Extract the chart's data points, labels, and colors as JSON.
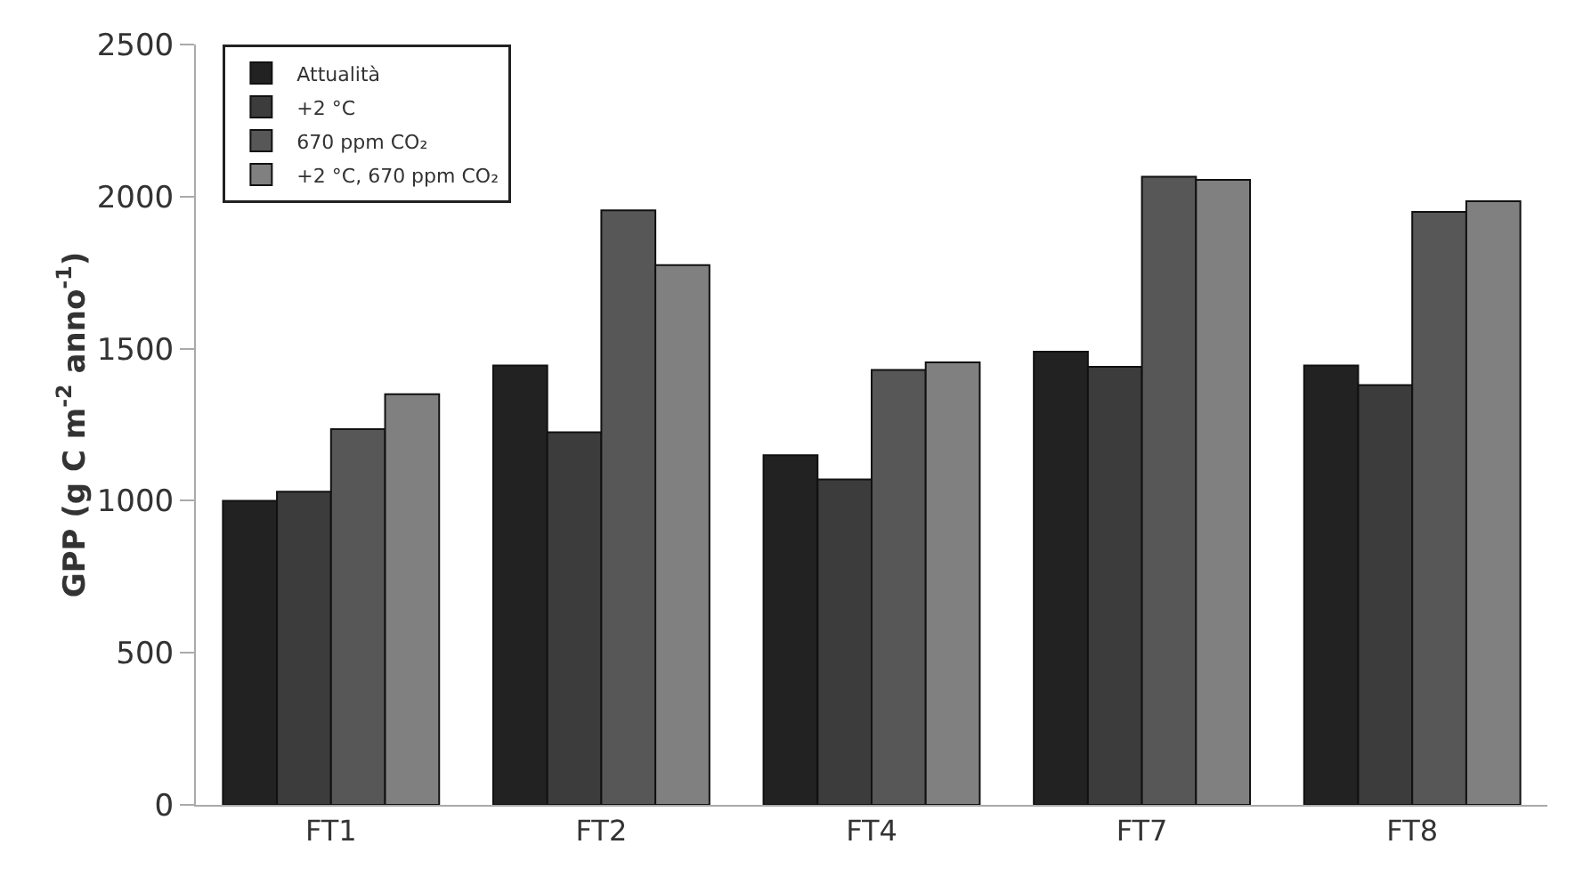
{
  "chart_data": {
    "type": "bar",
    "ylabel": "GPP (g C m$^{-2}$ anno$^{-1}$)",
    "categories": [
      "FT1",
      "FT2",
      "FT4",
      "FT7",
      "FT8"
    ],
    "series": [
      {
        "name": "Attualità",
        "color": "#222222",
        "values": [
          1000,
          1445,
          1150,
          1490,
          1445
        ]
      },
      {
        "name": "+2 °C",
        "color": "#3c3c3c",
        "values": [
          1030,
          1225,
          1070,
          1440,
          1380
        ]
      },
      {
        "name": "670 ppm CO₂",
        "color": "#575757",
        "values": [
          1235,
          1955,
          1430,
          2065,
          1950
        ]
      },
      {
        "name": "+2 °C, 670 ppm CO₂",
        "color": "#808080",
        "values": [
          1350,
          1775,
          1455,
          2055,
          1985
        ]
      }
    ],
    "ylim": [
      0,
      2500
    ],
    "yticks": [
      0,
      500,
      1000,
      1500,
      2000,
      2500
    ],
    "grid": false,
    "legend": "top left"
  }
}
